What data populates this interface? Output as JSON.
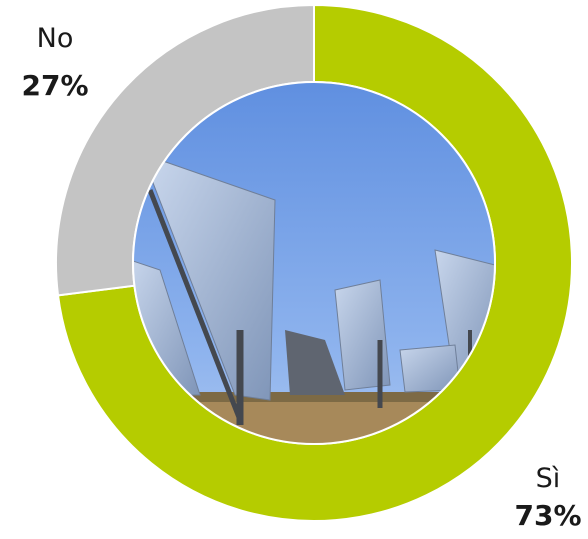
{
  "chart_data": {
    "type": "donut",
    "categories": [
      "Sì",
      "No"
    ],
    "values": [
      73,
      27
    ],
    "value_labels": [
      "73%",
      "27%"
    ],
    "colors": [
      "#b5cc00",
      "#c4c4c4"
    ]
  }
}
